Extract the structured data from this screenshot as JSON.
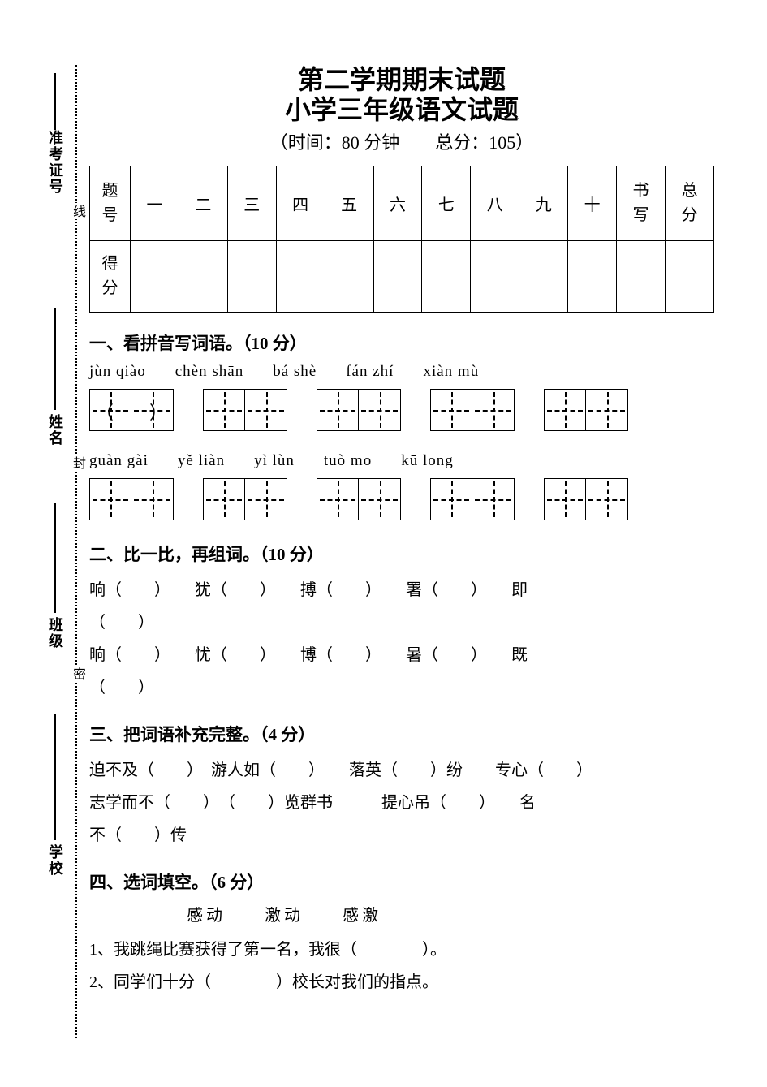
{
  "binding": {
    "labels": [
      "准考证号",
      "姓名",
      "班级",
      "学校"
    ],
    "marks": [
      "线",
      "封",
      "密"
    ]
  },
  "header": {
    "title1": "第二学期期末试题",
    "title2": "小学三年级语文试题",
    "meta": "（时间：80 分钟　　总分：105）"
  },
  "score_table": {
    "row_labels": [
      "题号",
      "得分"
    ],
    "cols": [
      "一",
      "二",
      "三",
      "四",
      "五",
      "六",
      "七",
      "八",
      "九",
      "十",
      "书写",
      "总分"
    ]
  },
  "sec1": {
    "title": "一、看拼音写词语。（10 分）",
    "row1": [
      "jùn  qiào",
      "chèn  shān",
      "bá  shè",
      "fán  zhí",
      "xiàn  mù"
    ],
    "row2": [
      "guàn  gài",
      "yě  liàn",
      "yì  lùn",
      "tuò  mo",
      "kū  long"
    ]
  },
  "sec2": {
    "title": "二、比一比，再组词。（10 分）",
    "line1": "响（　　）　　犹（　　）　　搏（　　）　　署（　　）　　即",
    "line1b": "（　　）",
    "line2": "晌（　　）　　忧（　　）　　博（　　）　　暑（　　）　　既",
    "line2b": "（　　）"
  },
  "sec3": {
    "title": "三、把词语补充完整。（4 分）",
    "line1": "迫不及（　　）　游人如（　　）　　落英（　　）纷　　专心（　　）",
    "line2": "志学而不（　　）　（　　）览群书　　　提心吊（　　）　　名",
    "line3": "不（　　）传"
  },
  "sec4": {
    "title": "四、选词填空。（6 分）",
    "options": "感动　　激动　　感激",
    "q1": "1、我跳绳比赛获得了第一名，我很（　　　　）。",
    "q2": "2、同学们十分（　　　　）校长对我们的指点。"
  }
}
